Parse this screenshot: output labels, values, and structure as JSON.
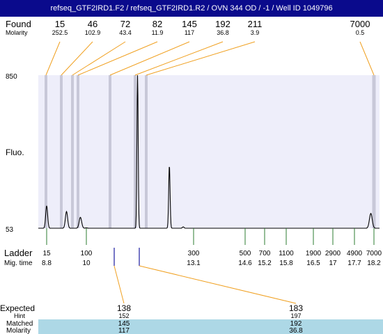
{
  "header": {
    "title": "refseq_GTF2IRD1.F2 / refseq_GTF2IRD1.R2 / OVN 344 OD / -1 / Well ID 1049796"
  },
  "labels": {
    "found": "Found",
    "molarity": "Molarity",
    "fluo": "Fluo.",
    "ladder": "Ladder",
    "mig_time": "Mig. time",
    "expected": "Expected",
    "hint": "Hint",
    "matched": "Matched",
    "molarity_bottom": "Molarity"
  },
  "colors": {
    "title_bg": "#0a0a8c",
    "plot_bg": "#eeeefa",
    "peak_band": "#c8c8d8",
    "connector": "#f0a020",
    "ladder_tick": "#2e7d32",
    "expected_tick": "#1a1aa0",
    "table_highlight": "#add8e6"
  },
  "chart_data": {
    "type": "line",
    "xlabel": "",
    "ylabel": "Fluo.",
    "y_ticks": [
      "850",
      "53"
    ],
    "ylim": [
      53,
      850
    ],
    "found_peaks": [
      {
        "size": "15",
        "molarity": "252.5"
      },
      {
        "size": "46",
        "molarity": "102.9"
      },
      {
        "size": "72",
        "molarity": "43.4"
      },
      {
        "size": "82",
        "molarity": "11.9"
      },
      {
        "size": "145",
        "molarity": "117"
      },
      {
        "size": "192",
        "molarity": "36.8"
      },
      {
        "size": "211",
        "molarity": "3.9"
      },
      {
        "size": "7000",
        "molarity": "0.5"
      }
    ],
    "ladder": [
      {
        "size": "15",
        "time": "8.8"
      },
      {
        "size": "100",
        "time": "10"
      },
      {
        "size": "300",
        "time": "13.1"
      },
      {
        "size": "500",
        "time": "14.6"
      },
      {
        "size": "700",
        "time": "15.2"
      },
      {
        "size": "1100",
        "time": "15.8"
      },
      {
        "size": "1900",
        "time": "16.5"
      },
      {
        "size": "2900",
        "time": "17"
      },
      {
        "size": "4900",
        "time": "17.7"
      },
      {
        "size": "7000",
        "time": "18.2"
      }
    ],
    "trace_peaks": [
      {
        "time": 8.8,
        "height": 170
      },
      {
        "time": 9.4,
        "height": 140
      },
      {
        "time": 9.82,
        "height": 110
      },
      {
        "time": 10.0,
        "height": 55
      },
      {
        "time": 11.48,
        "height": 850
      },
      {
        "time": 12.4,
        "height": 380
      },
      {
        "time": 12.8,
        "height": 60
      },
      {
        "time": 18.12,
        "height": 130
      }
    ],
    "expected": [
      {
        "expected": "138",
        "hint": "152",
        "matched": "145",
        "molarity": "117"
      },
      {
        "expected": "183",
        "hint": "197",
        "matched": "192",
        "molarity": "36.8"
      }
    ]
  }
}
